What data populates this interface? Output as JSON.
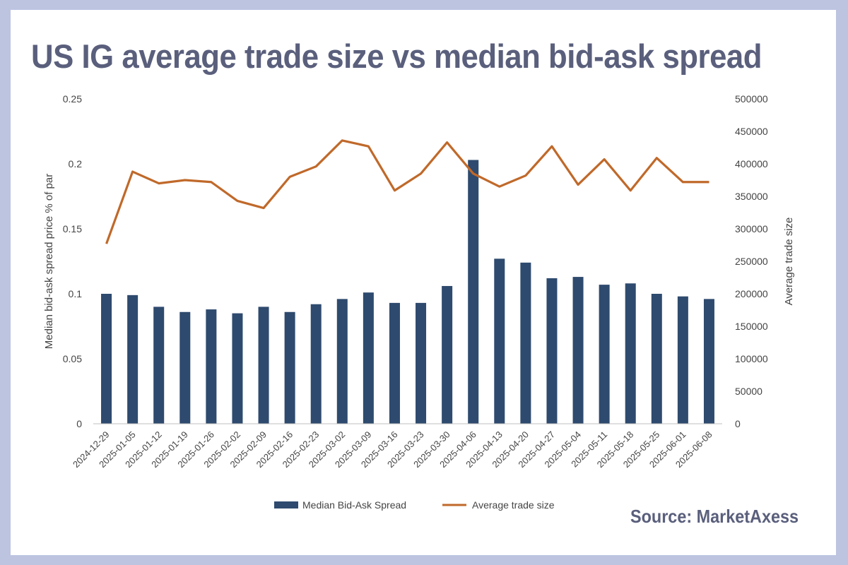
{
  "title": "US IG average trade size vs median bid-ask spread",
  "source": "Source: MarketAxess",
  "colors": {
    "bar": "#2e4a6e",
    "line": "#c0692a",
    "frame": "#bcc4e0",
    "title": "#5a5f7c"
  },
  "chart_data": {
    "type": "bar",
    "categories": [
      "2024-12-29",
      "2025-01-05",
      "2025-01-12",
      "2025-01-19",
      "2025-01-26",
      "2025-02-02",
      "2025-02-09",
      "2025-02-16",
      "2025-02-23",
      "2025-03-02",
      "2025-03-09",
      "2025-03-16",
      "2025-03-23",
      "2025-03-30",
      "2025-04-06",
      "2025-04-13",
      "2025-04-20",
      "2025-04-27",
      "2025-05-04",
      "2025-05-11",
      "2025-05-18",
      "2025-05-25",
      "2025-06-01",
      "2025-06-08"
    ],
    "series": [
      {
        "name": "Median Bid-Ask Spread",
        "type": "bar",
        "axis": "left",
        "values": [
          0.1,
          0.099,
          0.09,
          0.086,
          0.088,
          0.085,
          0.09,
          0.086,
          0.092,
          0.096,
          0.101,
          0.093,
          0.093,
          0.106,
          0.203,
          0.127,
          0.124,
          0.112,
          0.113,
          0.107,
          0.108,
          0.1,
          0.098,
          0.096
        ]
      },
      {
        "name": "Average trade size",
        "type": "line",
        "axis": "right",
        "values": [
          277000,
          388000,
          370000,
          375000,
          372000,
          343000,
          332000,
          380000,
          396000,
          436000,
          427000,
          359000,
          385000,
          433000,
          385000,
          365000,
          382000,
          427000,
          368000,
          407000,
          359000,
          409000,
          372000,
          372000
        ]
      }
    ],
    "ylabel": "Median bid-ask spread price % of par",
    "y2label": "Average trade size",
    "ylim": [
      0,
      0.25
    ],
    "y2lim": [
      0,
      500000
    ],
    "yticks": [
      "0",
      "0.05",
      "0.1",
      "0.15",
      "0.2",
      "0.25"
    ],
    "y2ticks": [
      "0",
      "50000",
      "100000",
      "150000",
      "200000",
      "250000",
      "300000",
      "350000",
      "400000",
      "450000",
      "500000"
    ],
    "grid": false,
    "legend_position": "bottom"
  }
}
